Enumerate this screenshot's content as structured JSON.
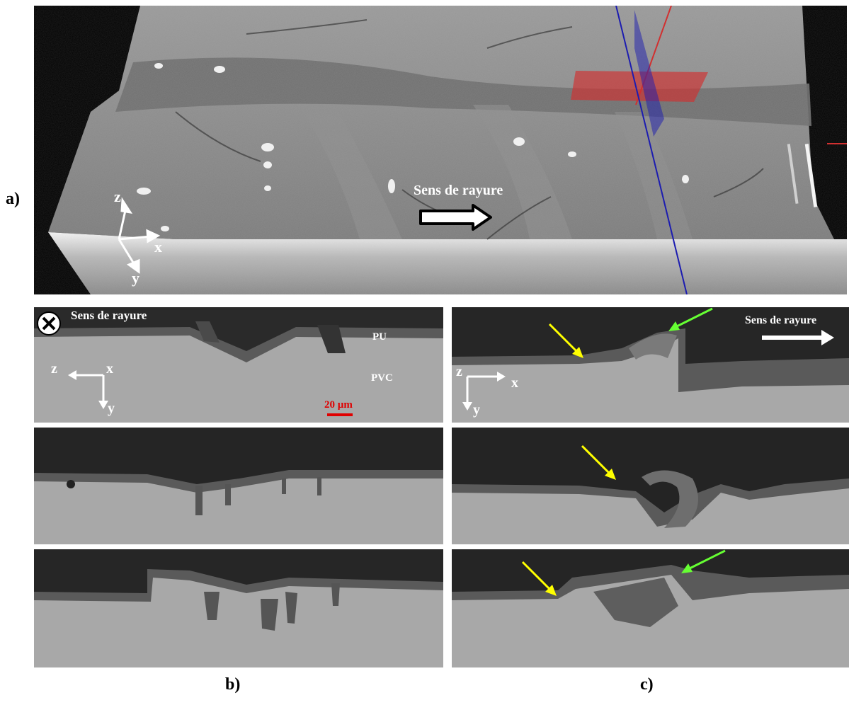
{
  "figure": {
    "panel_labels": {
      "a": "a)",
      "b": "b)",
      "c": "c)"
    },
    "scratch_direction": "Sens de rayure",
    "layers": {
      "top": "PU",
      "bottom": "PVC"
    },
    "scale_bar": "20 µm",
    "axes_a": {
      "z": "z",
      "x": "x",
      "y": "y"
    },
    "axes_b": {
      "z": "z",
      "x": "x",
      "y": "y"
    },
    "axes_c": {
      "z": "z",
      "x": "x",
      "y": "y"
    },
    "colors": {
      "background": "#ffffff",
      "scale_bar": "#e00000",
      "plane_red": "#d13030",
      "plane_blue": "#1c1cb0",
      "arrow_yellow": "#ffff00",
      "arrow_green": "#66ff33"
    }
  }
}
